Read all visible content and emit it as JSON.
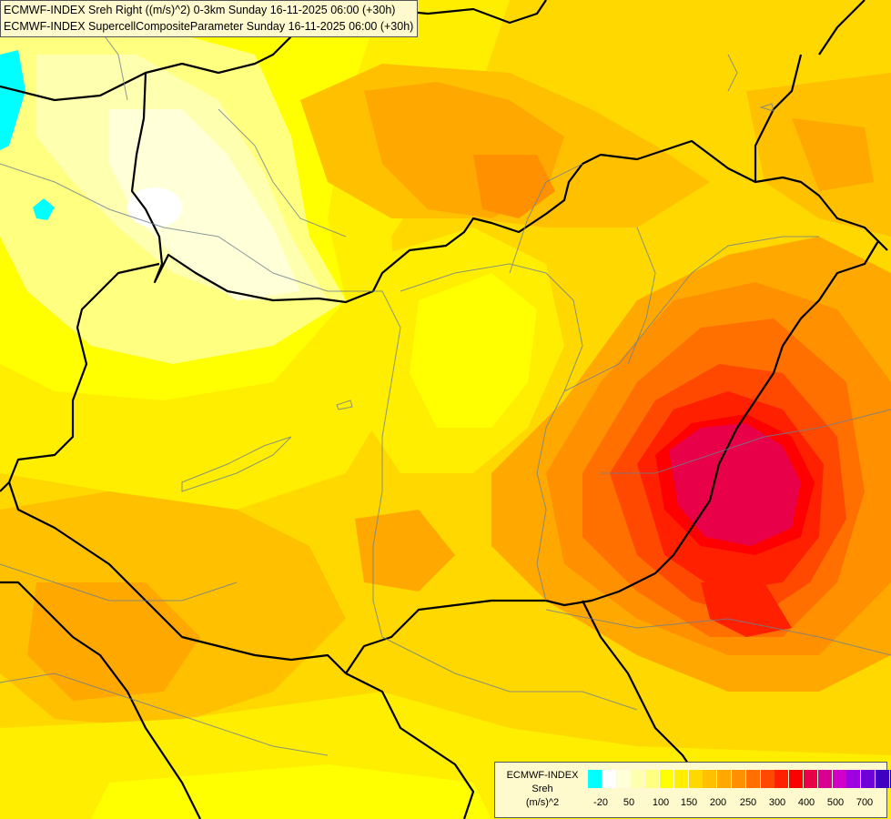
{
  "header": {
    "line1": "ECMWF-INDEX Sreh Right ((m/s)^2) 0-3km Sunday 16-11-2025 06:00 (+30h)",
    "line2": "ECMWF-INDEX SupercellCompositeParameter Sunday 16-11-2025 06:00 (+30h)"
  },
  "legend": {
    "title_line1": "ECMWF-INDEX",
    "title_line2": "Sreh",
    "title_line3": "(m/s)^2",
    "colors": [
      "#00ffff",
      "#ffffff",
      "#ffffd8",
      "#ffffb0",
      "#ffff80",
      "#ffff00",
      "#ffee00",
      "#ffd800",
      "#ffc000",
      "#ffa800",
      "#ff9000",
      "#ff7000",
      "#ff4800",
      "#ff2000",
      "#ff0000",
      "#e80048",
      "#d80090",
      "#d000c8",
      "#a000e0",
      "#7000d8",
      "#4000c0",
      "#0000a0",
      "#000070"
    ],
    "tick_labels": [
      "-20",
      "50",
      "100",
      "150",
      "200",
      "250",
      "300",
      "400",
      "500",
      "700"
    ]
  },
  "map_layers": {
    "field": "shaded-srh-field",
    "borders": "country-borders",
    "rivers": "rivers-lakes"
  }
}
